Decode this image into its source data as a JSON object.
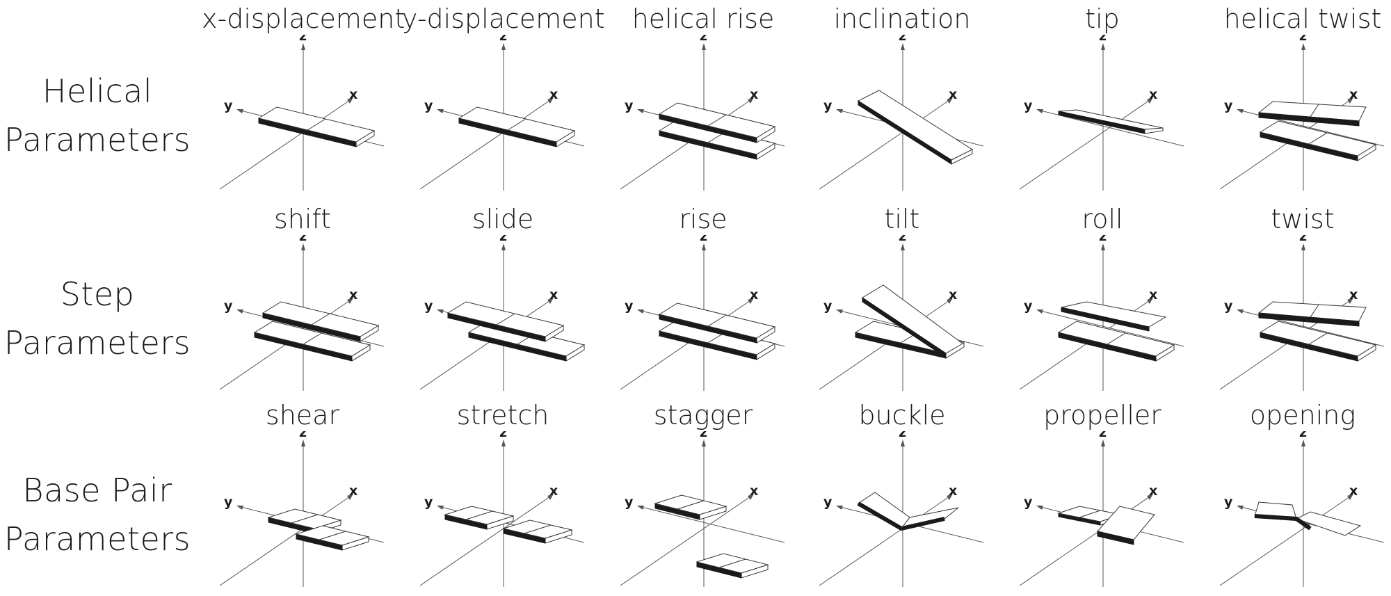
{
  "rows": [
    {
      "label_line1": "Helical",
      "label_line2": "Parameters",
      "panels": [
        {
          "title": "x-displacement",
          "kind": "single",
          "dx": 0,
          "dy": 0
        },
        {
          "title": "y-displacement",
          "kind": "single",
          "dx": 0,
          "dy": 0
        },
        {
          "title": "helical rise",
          "kind": "stack",
          "dx": 0,
          "dy": 0
        },
        {
          "title": "inclination",
          "kind": "incline",
          "dx": 0,
          "dy": 0
        },
        {
          "title": "tip",
          "kind": "tip",
          "dx": 0,
          "dy": 0
        },
        {
          "title": "helical twist",
          "kind": "twist",
          "dx": 0,
          "dy": 0
        }
      ]
    },
    {
      "label_line1": "Step",
      "label_line2": "Parameters",
      "panels": [
        {
          "title": "shift",
          "kind": "stack-shift",
          "dx": 0,
          "dy": 0
        },
        {
          "title": "slide",
          "kind": "stack-slide",
          "dx": 0,
          "dy": 0
        },
        {
          "title": "rise",
          "kind": "stack",
          "dx": 0,
          "dy": 0
        },
        {
          "title": "tilt",
          "kind": "tilt",
          "dx": 0,
          "dy": 0
        },
        {
          "title": "roll",
          "kind": "roll",
          "dx": 0,
          "dy": 0
        },
        {
          "title": "twist",
          "kind": "twist",
          "dx": 0,
          "dy": 0
        }
      ]
    },
    {
      "label_line1": "Base Pair",
      "label_line2": "Parameters",
      "panels": [
        {
          "title": "shear",
          "kind": "pair-shear",
          "dx": 0,
          "dy": 0
        },
        {
          "title": "stretch",
          "kind": "pair-stretch",
          "dx": 0,
          "dy": 0
        },
        {
          "title": "stagger",
          "kind": "pair-stagger",
          "dx": 0,
          "dy": 0
        },
        {
          "title": "buckle",
          "kind": "pair-buckle",
          "dx": 0,
          "dy": 0
        },
        {
          "title": "propeller",
          "kind": "pair-propeller",
          "dx": 0,
          "dy": 0
        },
        {
          "title": "opening",
          "kind": "pair-opening",
          "dx": 0,
          "dy": 0
        }
      ]
    }
  ],
  "axes": {
    "x": "x",
    "y": "y",
    "z": "z"
  },
  "colors": {
    "edge": "#1a1a1a",
    "line": "#333333",
    "axis": "#555555"
  }
}
